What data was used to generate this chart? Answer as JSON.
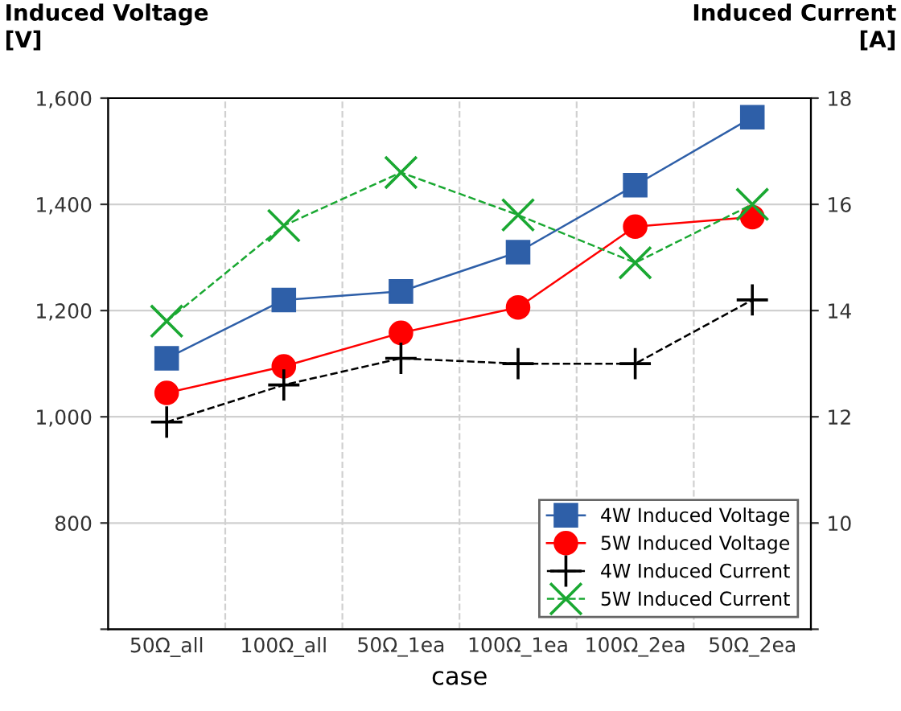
{
  "chart_data": {
    "type": "line",
    "xlabel": "case",
    "ylabel": "Induced Voltage\n[V]",
    "y2label": "Induced Current\n[A]",
    "categories": [
      "50Ω_all",
      "100Ω_all",
      "50Ω_1ea",
      "100Ω_1ea",
      "100Ω_2ea",
      "50Ω_2ea"
    ],
    "series": [
      {
        "name": "4W Induced Voltage",
        "color": "#2e5fa8",
        "marker": "square",
        "line_style": "solid",
        "values": [
          1110,
          1220,
          1236,
          1310,
          1436,
          1564
        ]
      },
      {
        "name": "5W Induced Voltage",
        "color": "#ff0000",
        "marker": "circle",
        "line_style": "solid",
        "values": [
          1045,
          1095,
          1158,
          1206,
          1358,
          1376
        ]
      },
      {
        "name": "4W Induced Current",
        "color": "#000000",
        "marker": "cross",
        "line_style": "dashed",
        "axis": "y2",
        "values": [
          11.9,
          12.6,
          13.1,
          13.0,
          13.0,
          14.2
        ]
      },
      {
        "name": "5W Induced Current",
        "color": "#1aa832",
        "marker": "x",
        "line_style": "dashed",
        "axis": "y2",
        "values": [
          13.8,
          15.6,
          16.6,
          15.8,
          14.9,
          16.0
        ]
      }
    ],
    "ylim": [
      600,
      1600
    ],
    "yticks": [
      {
        "value": 600,
        "label": null
      },
      800,
      {
        "value": 1000,
        "label": "1,000"
      },
      {
        "value": 1200,
        "label": "1,200"
      },
      {
        "value": 1400,
        "label": "1,400"
      },
      {
        "value": 1600,
        "label": "1,600"
      }
    ],
    "y2lim": [
      8,
      18
    ],
    "y2ticks": [
      {
        "value": 8,
        "label": null
      },
      10,
      12,
      14,
      16,
      18
    ],
    "grid": true,
    "legend": "bottom right"
  }
}
